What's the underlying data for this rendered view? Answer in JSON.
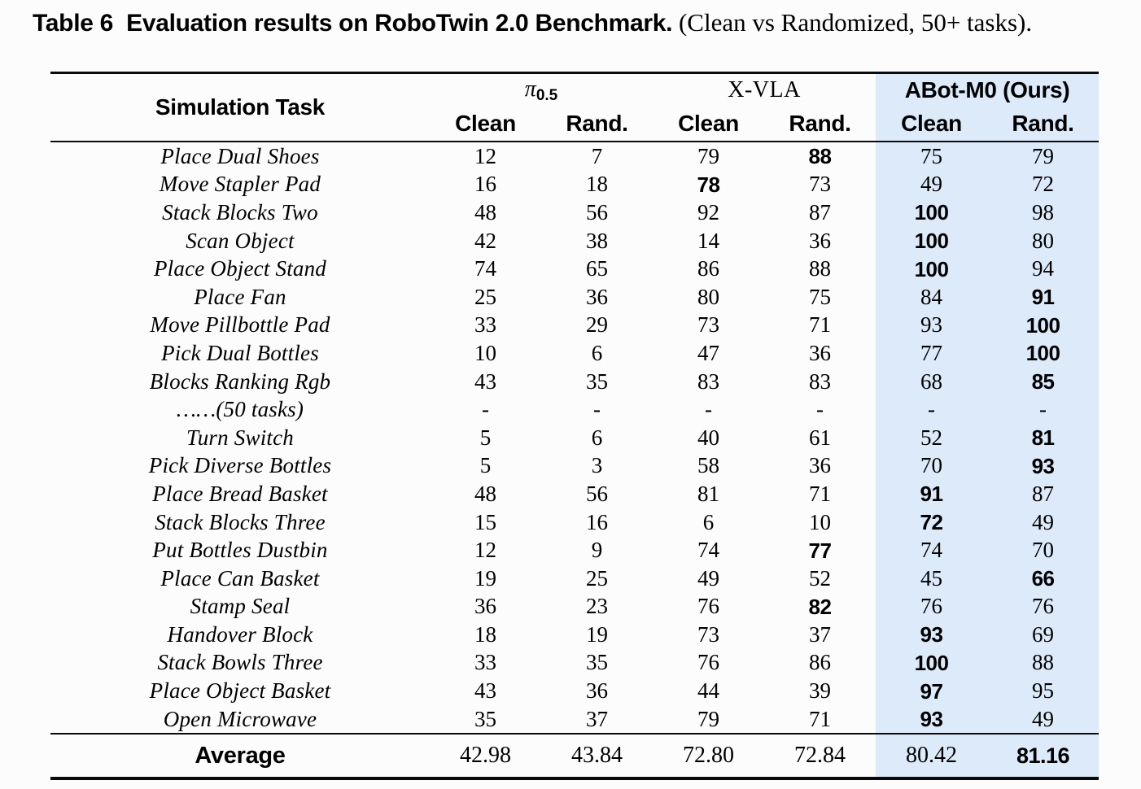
{
  "caption": {
    "bold": "Table 6  Evaluation results on RoboTwin 2.0 Benchmark.",
    "serif": " (Clean vs Randomized, 50+ tasks)."
  },
  "colors": {
    "highlight": "#dceafa",
    "text": "#000000",
    "background": "#fcfcfc"
  },
  "table": {
    "task_header": "Simulation Task",
    "groups": [
      {
        "label_pi": "π",
        "label_pi_sub": "0.5",
        "cols": [
          "Clean",
          "Rand."
        ],
        "highlighted": false
      },
      {
        "label": "X-VLA",
        "cols": [
          "Clean",
          "Rand."
        ],
        "highlighted": false
      },
      {
        "label": "ABot-M0 (Ours)",
        "cols": [
          "Clean",
          "Rand."
        ],
        "highlighted": true
      }
    ],
    "rows": [
      {
        "task": "Place Dual Shoes",
        "values": [
          "12",
          "7",
          "79",
          "88",
          "75",
          "79"
        ],
        "bold_index": 3
      },
      {
        "task": "Move Stapler Pad",
        "values": [
          "16",
          "18",
          "78",
          "73",
          "49",
          "72"
        ],
        "bold_index": 2
      },
      {
        "task": "Stack Blocks Two",
        "values": [
          "48",
          "56",
          "92",
          "87",
          "100",
          "98"
        ],
        "bold_index": 4
      },
      {
        "task": "Scan Object",
        "values": [
          "42",
          "38",
          "14",
          "36",
          "100",
          "80"
        ],
        "bold_index": 4
      },
      {
        "task": "Place Object Stand",
        "values": [
          "74",
          "65",
          "86",
          "88",
          "100",
          "94"
        ],
        "bold_index": 4
      },
      {
        "task": "Place Fan",
        "values": [
          "25",
          "36",
          "80",
          "75",
          "84",
          "91"
        ],
        "bold_index": 5
      },
      {
        "task": "Move Pillbottle Pad",
        "values": [
          "33",
          "29",
          "73",
          "71",
          "93",
          "100"
        ],
        "bold_index": 5
      },
      {
        "task": "Pick Dual Bottles",
        "values": [
          "10",
          "6",
          "47",
          "36",
          "77",
          "100"
        ],
        "bold_index": 5
      },
      {
        "task": "Blocks Ranking Rgb",
        "values": [
          "43",
          "35",
          "83",
          "83",
          "68",
          "85"
        ],
        "bold_index": 5
      },
      {
        "task": "……(50 tasks)",
        "values": [
          "-",
          "-",
          "-",
          "-",
          "-",
          "-"
        ],
        "bold_index": -1
      },
      {
        "task": "Turn Switch",
        "values": [
          "5",
          "6",
          "40",
          "61",
          "52",
          "81"
        ],
        "bold_index": 5
      },
      {
        "task": "Pick Diverse Bottles",
        "values": [
          "5",
          "3",
          "58",
          "36",
          "70",
          "93"
        ],
        "bold_index": 5
      },
      {
        "task": "Place Bread Basket",
        "values": [
          "48",
          "56",
          "81",
          "71",
          "91",
          "87"
        ],
        "bold_index": 4
      },
      {
        "task": "Stack Blocks Three",
        "values": [
          "15",
          "16",
          "6",
          "10",
          "72",
          "49"
        ],
        "bold_index": 4
      },
      {
        "task": "Put Bottles Dustbin",
        "values": [
          "12",
          "9",
          "74",
          "77",
          "74",
          "70"
        ],
        "bold_index": 3
      },
      {
        "task": "Place Can Basket",
        "values": [
          "19",
          "25",
          "49",
          "52",
          "45",
          "66"
        ],
        "bold_index": 5
      },
      {
        "task": "Stamp Seal",
        "values": [
          "36",
          "23",
          "76",
          "82",
          "76",
          "76"
        ],
        "bold_index": 3
      },
      {
        "task": "Handover Block",
        "values": [
          "18",
          "19",
          "73",
          "37",
          "93",
          "69"
        ],
        "bold_index": 4
      },
      {
        "task": "Stack Bowls Three",
        "values": [
          "33",
          "35",
          "76",
          "86",
          "100",
          "88"
        ],
        "bold_index": 4
      },
      {
        "task": "Place Object Basket",
        "values": [
          "43",
          "36",
          "44",
          "39",
          "97",
          "95"
        ],
        "bold_index": 4
      },
      {
        "task": "Open Microwave",
        "values": [
          "35",
          "37",
          "79",
          "71",
          "93",
          "49"
        ],
        "bold_index": 4
      }
    ],
    "average": {
      "label": "Average",
      "values": [
        "42.98",
        "43.84",
        "72.80",
        "72.84",
        "80.42",
        "81.16"
      ],
      "bold_index": 5
    }
  }
}
